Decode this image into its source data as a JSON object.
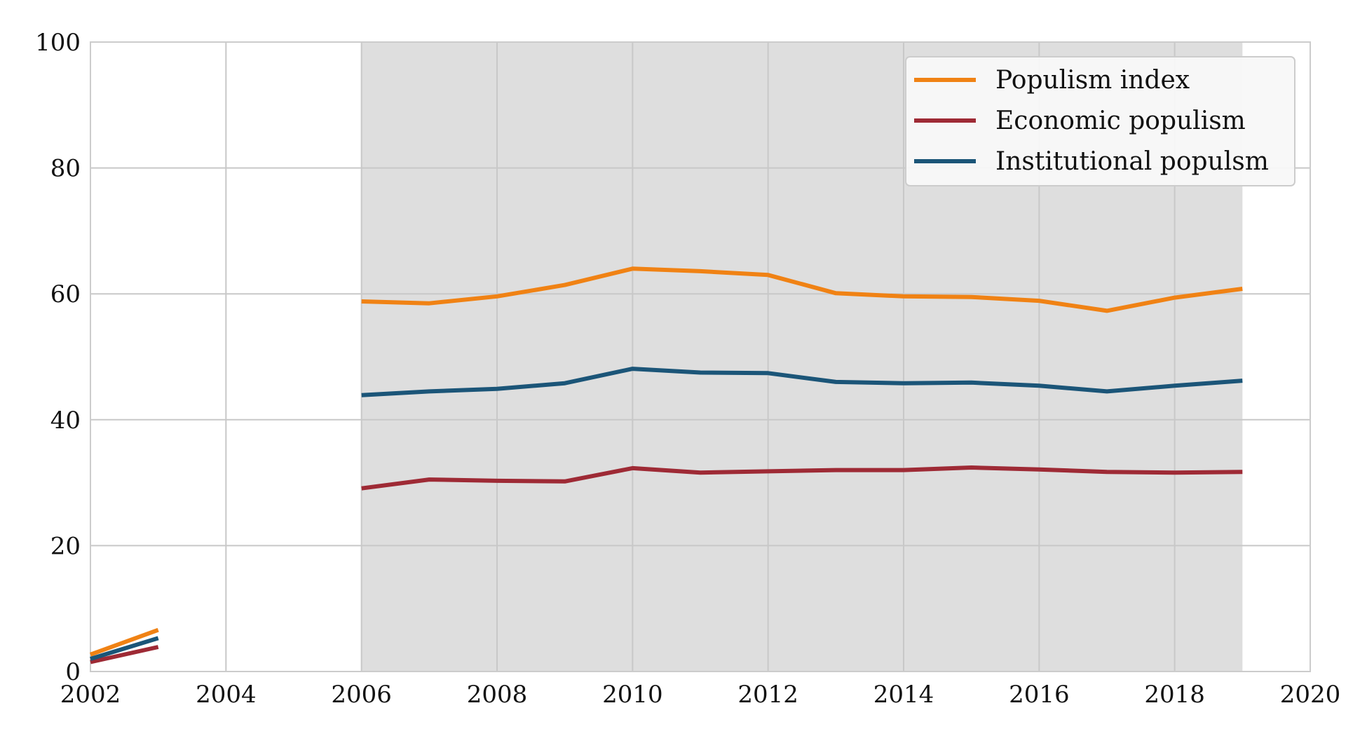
{
  "chart_data": {
    "type": "line",
    "x_ticks": [
      2002,
      2004,
      2006,
      2008,
      2010,
      2012,
      2014,
      2016,
      2018,
      2020
    ],
    "y_ticks": [
      0,
      20,
      40,
      60,
      80,
      100
    ],
    "xlim": [
      2002,
      2020
    ],
    "ylim": [
      0,
      100
    ],
    "grid": true,
    "legend_position": "top-right",
    "shaded_region": {
      "x_start": 2006,
      "x_end": 2019,
      "color": "#dedede"
    },
    "series": [
      {
        "name": "Populism index",
        "color": "#f08214",
        "segments": [
          {
            "x": [
              2002,
              2003
            ],
            "y": [
              2.7,
              6.6
            ]
          },
          {
            "x": [
              2006,
              2007,
              2008,
              2009,
              2010,
              2011,
              2012,
              2013,
              2014,
              2015,
              2016,
              2017,
              2018,
              2019
            ],
            "y": [
              58.8,
              58.5,
              59.6,
              61.4,
              64.0,
              63.6,
              63.0,
              60.1,
              59.6,
              59.5,
              58.9,
              57.3,
              59.4,
              60.8
            ]
          }
        ]
      },
      {
        "name": "Economic populism",
        "color": "#9e2a35",
        "segments": [
          {
            "x": [
              2002,
              2003
            ],
            "y": [
              1.5,
              3.9
            ]
          },
          {
            "x": [
              2006,
              2007,
              2008,
              2009,
              2010,
              2011,
              2012,
              2013,
              2014,
              2015,
              2016,
              2017,
              2018,
              2019
            ],
            "y": [
              29.1,
              30.5,
              30.3,
              30.2,
              32.3,
              31.6,
              31.8,
              32.0,
              32.0,
              32.4,
              32.1,
              31.7,
              31.6,
              31.7
            ]
          }
        ]
      },
      {
        "name": "Institutional populsm",
        "color": "#1b5578",
        "segments": [
          {
            "x": [
              2002,
              2003
            ],
            "y": [
              2.0,
              5.3
            ]
          },
          {
            "x": [
              2006,
              2007,
              2008,
              2009,
              2010,
              2011,
              2012,
              2013,
              2014,
              2015,
              2016,
              2017,
              2018,
              2019
            ],
            "y": [
              43.9,
              44.5,
              44.9,
              45.8,
              48.1,
              47.5,
              47.4,
              46.0,
              45.8,
              45.9,
              45.4,
              44.5,
              45.4,
              46.2
            ]
          }
        ]
      }
    ]
  }
}
